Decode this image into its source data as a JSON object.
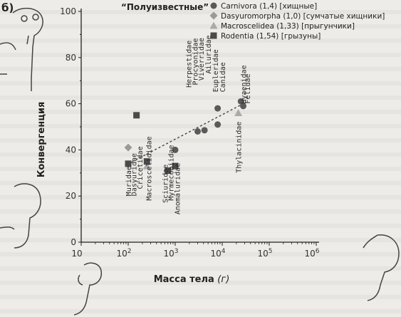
{
  "panel": "б)",
  "chart_data": {
    "type": "scatter",
    "title": "“Полуизвестные”",
    "xlabel_main": "Масса тела",
    "xlabel_unit": "(г)",
    "ylabel": "Конвергенция",
    "xscale": "log",
    "xlim": [
      10,
      1000000
    ],
    "ylim": [
      0,
      100
    ],
    "x_ticks": [
      {
        "v": 10,
        "base": "10",
        "exp": ""
      },
      {
        "v": 100,
        "base": "10",
        "exp": "2"
      },
      {
        "v": 1000,
        "base": "10",
        "exp": "3"
      },
      {
        "v": 10000,
        "base": "10",
        "exp": "4"
      },
      {
        "v": 100000,
        "base": "10",
        "exp": "5"
      },
      {
        "v": 1000000,
        "base": "10",
        "exp": "6"
      }
    ],
    "y_ticks": [
      0,
      20,
      40,
      60,
      80,
      100
    ],
    "legend_position": "top-right",
    "series": [
      {
        "name": "Carnivora (1,4) [хищные]",
        "marker": "circle",
        "color": "#5a5a5a",
        "points": [
          [
            1000,
            40
          ],
          [
            3000,
            48
          ],
          [
            4200,
            48.5
          ],
          [
            8000,
            51
          ],
          [
            8000,
            58
          ],
          [
            25000,
            61
          ],
          [
            28000,
            59
          ]
        ]
      },
      {
        "name": "Dasyuromorpha (1,0) [сумчатые хищники]",
        "marker": "diamond",
        "color": "#9a9a9a",
        "points": [
          [
            100,
            41
          ]
        ]
      },
      {
        "name": "Macroscelidea (1,33) [прыгунчики]",
        "marker": "triangle",
        "color": "#aaaaaa",
        "points": [
          [
            250,
            33
          ],
          [
            22000,
            56
          ]
        ]
      },
      {
        "name": "Rodentia (1,54) [грызуны]",
        "marker": "square",
        "color": "#4a4a4a",
        "points": [
          [
            100,
            34
          ],
          [
            150,
            55
          ],
          [
            250,
            35
          ],
          [
            700,
            31
          ],
          [
            1000,
            33
          ]
        ]
      }
    ],
    "trendline": {
      "from": [
        100,
        34
      ],
      "to": [
        28000,
        60
      ]
    },
    "category_labels": [
      {
        "text": "Muridae",
        "x": 100,
        "y": 20
      },
      {
        "text": "Dasyuridae",
        "x": 130,
        "y": 20
      },
      {
        "text": "Cricetidae",
        "x": 175,
        "y": 23
      },
      {
        "text": "Macroscelididae",
        "x": 270,
        "y": 18
      },
      {
        "text": "Sciuridae",
        "x": 600,
        "y": 17
      },
      {
        "text": "Myrmecobiidae",
        "x": 800,
        "y": 18
      },
      {
        "text": "Anomaluridae",
        "x": 1100,
        "y": 12
      },
      {
        "text": "Herpestidae",
        "x": 1900,
        "y": 67
      },
      {
        "text": "Procyonidae",
        "x": 2600,
        "y": 68
      },
      {
        "text": "Viverridae",
        "x": 3500,
        "y": 70
      },
      {
        "text": "Ailuridae",
        "x": 5000,
        "y": 73
      },
      {
        "text": "Eupleridae",
        "x": 7000,
        "y": 65
      },
      {
        "text": "Canidae",
        "x": 10000,
        "y": 65
      },
      {
        "text": "Thylacinidae",
        "x": 22000,
        "y": 30
      },
      {
        "text": "Hyaenidae",
        "x": 28000,
        "y": 60
      },
      {
        "text": "Felidae",
        "x": 34000,
        "y": 60
      }
    ]
  }
}
